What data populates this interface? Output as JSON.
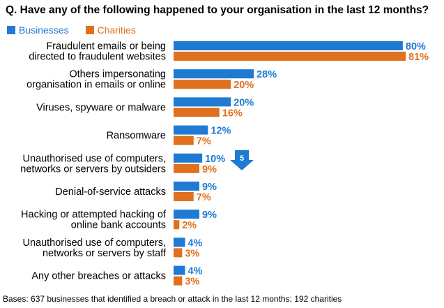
{
  "title": "Q.  Have any of the following happened to your organisation in the last 12 months?",
  "footnote": "Bases: 637 businesses that identified a breach or attack in the last 12 months; 192 charities",
  "colors": {
    "businesses": "#1f7ad4",
    "charities": "#e0701e"
  },
  "marker": {
    "label": "5",
    "icon": "down-arrow-icon",
    "color": "#1f7ad4"
  },
  "chart_data": {
    "type": "bar",
    "orientation": "horizontal",
    "categories": [
      [
        "Fraudulent emails or being",
        "directed to fraudulent websites"
      ],
      [
        "Others impersonating",
        "organisation in emails or online"
      ],
      [
        "Viruses, spyware or malware"
      ],
      [
        "Ransomware"
      ],
      [
        "Unauthorised use of computers,",
        "networks or servers by outsiders"
      ],
      [
        "Denial-of-service attacks"
      ],
      [
        "Hacking or attempted hacking of",
        "online bank accounts"
      ],
      [
        "Unauthorised use of computers,",
        "networks or servers by staff"
      ],
      [
        "Any other breaches or attacks"
      ]
    ],
    "series": [
      {
        "name": "Businesses",
        "values": [
          80,
          28,
          20,
          12,
          10,
          9,
          9,
          4,
          4
        ]
      },
      {
        "name": "Charities",
        "values": [
          81,
          20,
          16,
          7,
          9,
          7,
          2,
          3,
          3
        ]
      }
    ],
    "value_suffix": "%",
    "xlim": [
      0,
      81
    ],
    "legend_position": "top-left",
    "grid": false
  }
}
